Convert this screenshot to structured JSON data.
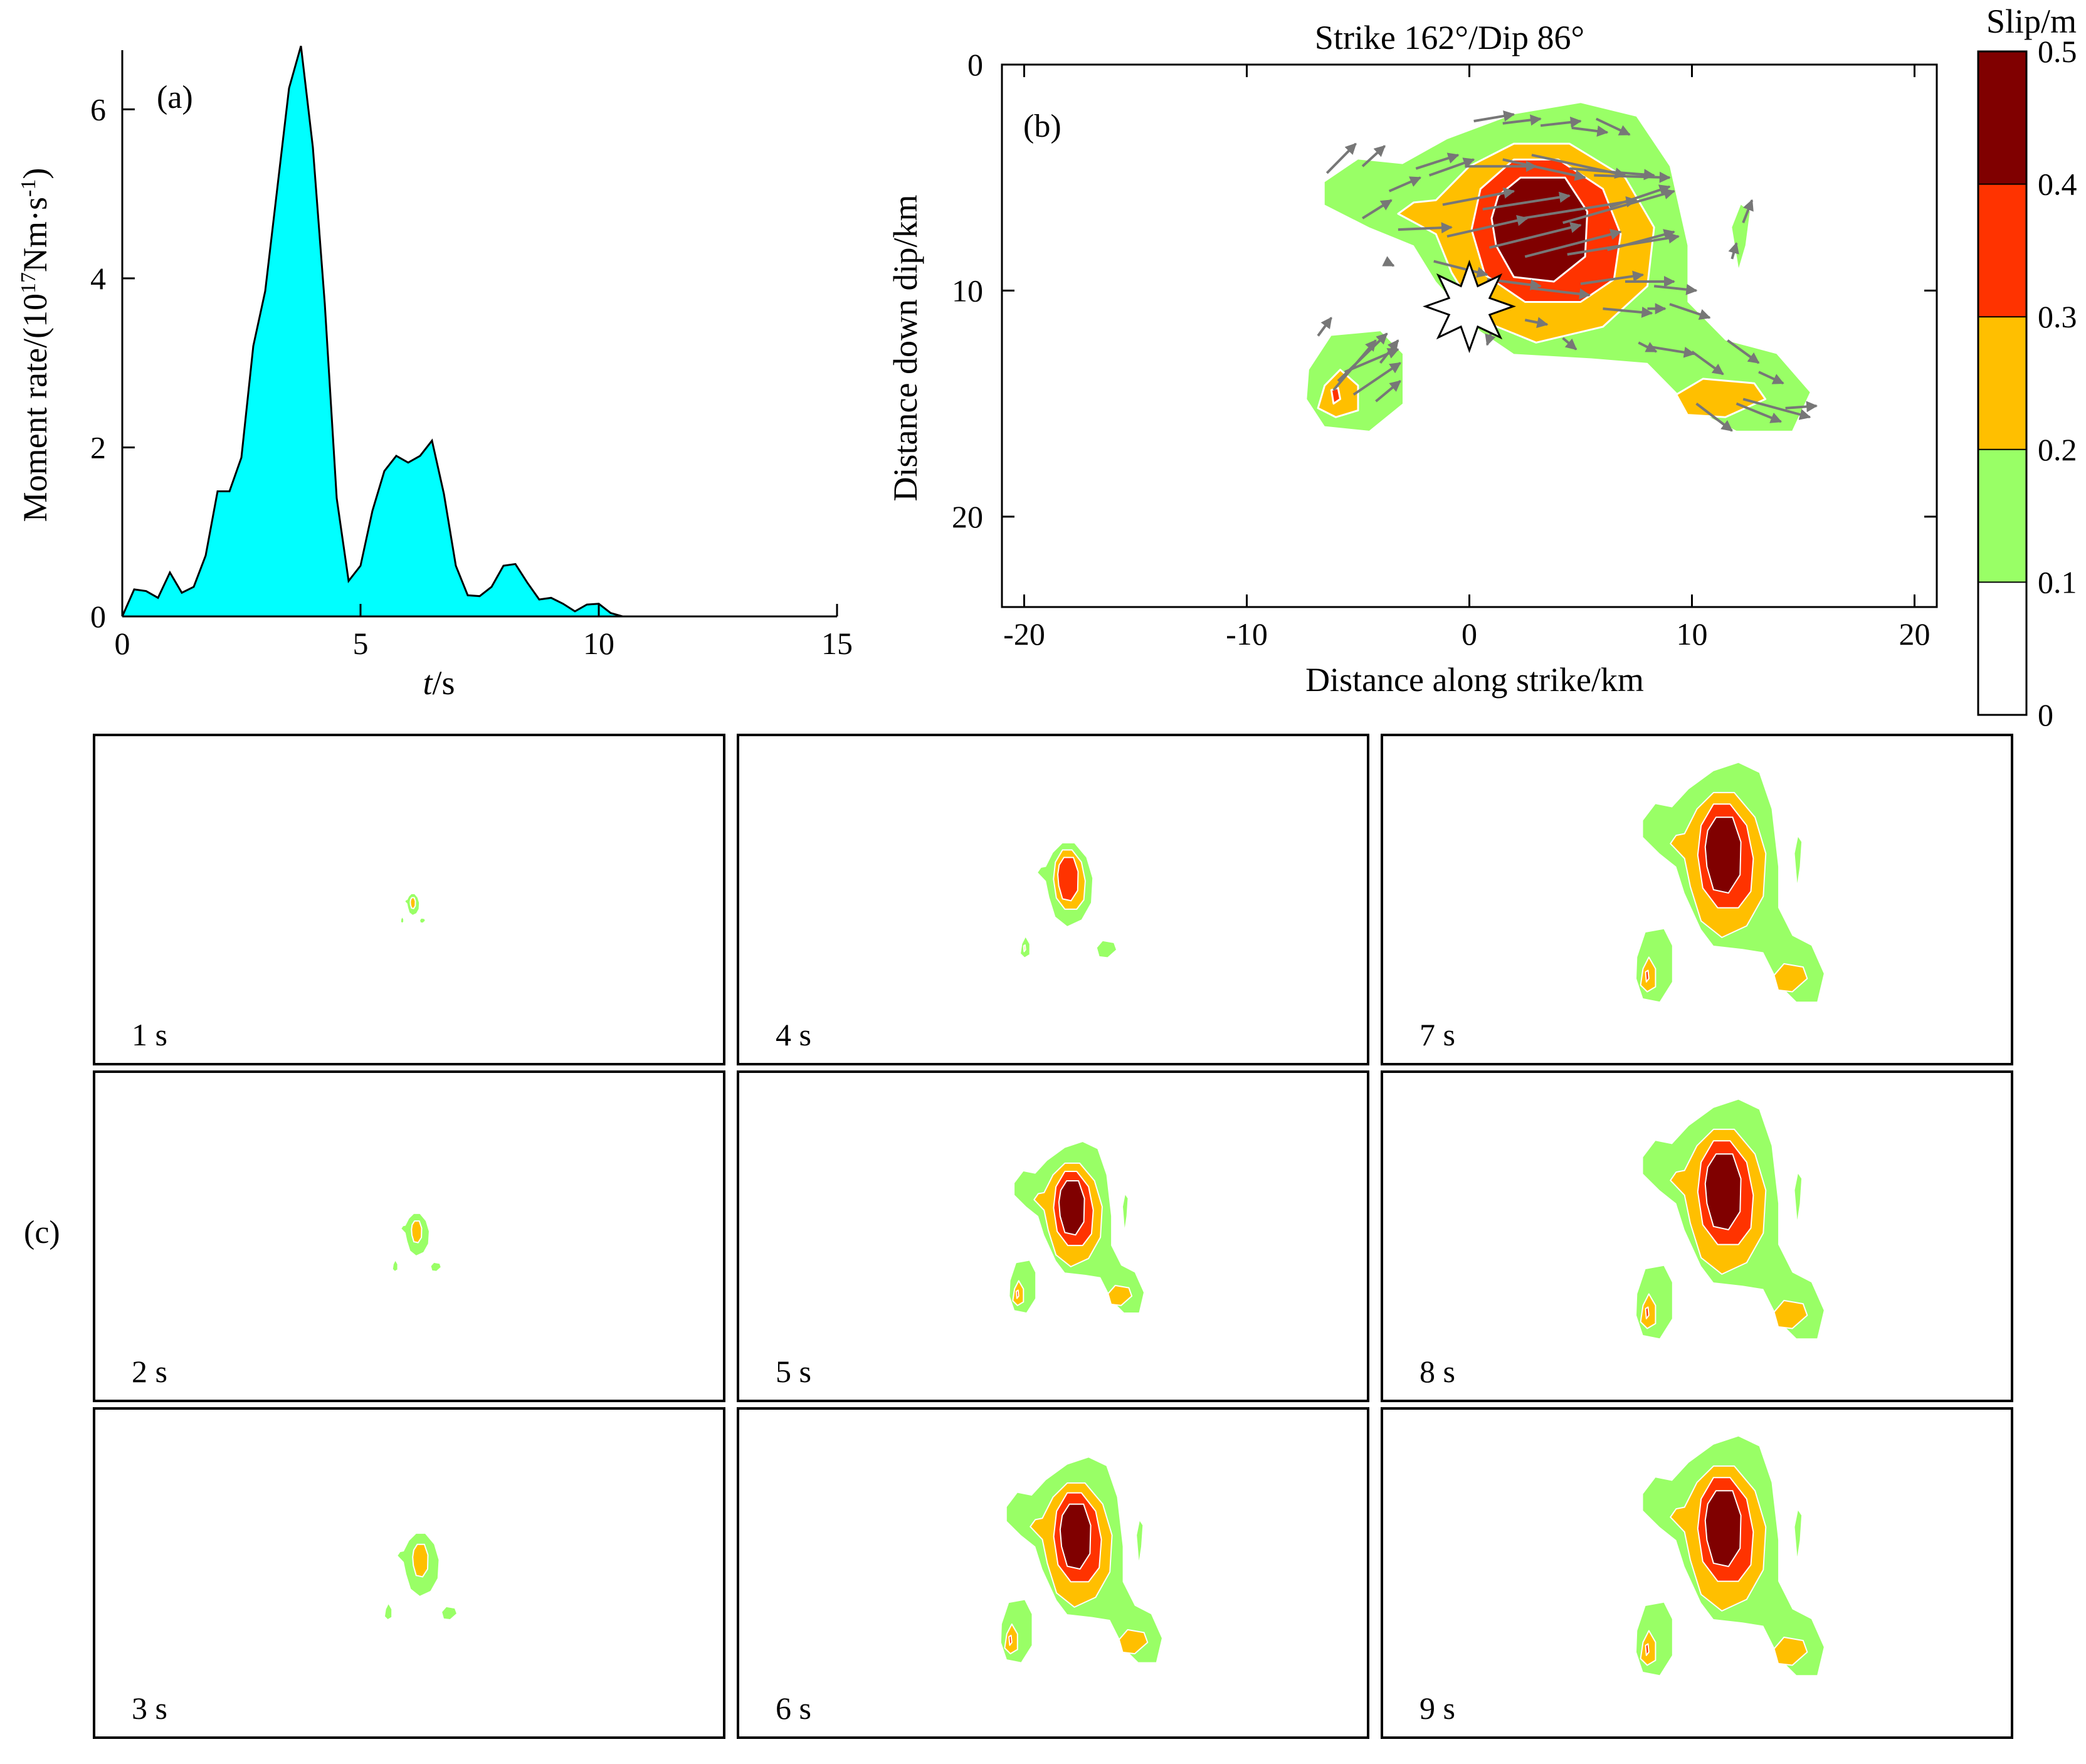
{
  "chart_data": [
    {
      "id": "a",
      "type": "area",
      "panel_label": "(a)",
      "xlabel_italic": "t",
      "xlabel_unit": "/s",
      "ylabel_main": "Moment rate/(10",
      "ylabel_exp1": "17",
      "ylabel_mid": "Nm·s",
      "ylabel_exp2": "-1",
      "ylabel_end": ")",
      "xlim": [
        0,
        15
      ],
      "ylim": [
        0,
        6.7
      ],
      "xticks": [
        0,
        5,
        10,
        15
      ],
      "yticks": [
        0,
        2,
        4,
        6
      ],
      "fill_color": "#00ffff",
      "x": [
        0,
        0.25,
        0.5,
        0.75,
        1.0,
        1.25,
        1.5,
        1.75,
        2.0,
        2.25,
        2.5,
        2.75,
        3.0,
        3.25,
        3.5,
        3.75,
        4.0,
        4.25,
        4.5,
        4.75,
        5.0,
        5.25,
        5.5,
        5.75,
        6.0,
        6.25,
        6.5,
        6.75,
        7.0,
        7.25,
        7.5,
        7.75,
        8.0,
        8.25,
        8.5,
        8.75,
        9.0,
        9.25,
        9.5,
        9.75,
        10.0,
        10.25,
        10.5,
        10.75,
        11.0
      ],
      "y": [
        0,
        0.32,
        0.3,
        0.22,
        0.52,
        0.28,
        0.35,
        0.72,
        1.48,
        1.48,
        1.88,
        3.2,
        3.85,
        5.05,
        6.25,
        6.75,
        5.55,
        3.7,
        1.4,
        0.42,
        0.6,
        1.25,
        1.72,
        1.9,
        1.82,
        1.9,
        2.08,
        1.45,
        0.6,
        0.25,
        0.24,
        0.35,
        0.6,
        0.62,
        0.4,
        0.2,
        0.22,
        0.15,
        0.06,
        0.14,
        0.15,
        0.04,
        0.0,
        0.0,
        0.0
      ]
    },
    {
      "id": "b",
      "type": "heatmap",
      "panel_label": "(b)",
      "title": "Strike 162°/Dip 86°",
      "xlabel": "Distance along strike/km",
      "ylabel": "Distance down dip/km",
      "xlim": [
        -21,
        21
      ],
      "ylim": [
        24,
        0
      ],
      "xticks": [
        -20,
        -10,
        0,
        10,
        20
      ],
      "yticks": [
        0,
        10,
        20
      ],
      "hypocenter": [
        0,
        10.7
      ],
      "contour_levels": [
        0.1,
        0.2,
        0.3,
        0.4
      ],
      "patches": [
        {
          "slip": 0.1,
          "points": [
            [
              -6.5,
              5.2
            ],
            [
              -5,
              4.2
            ],
            [
              -3,
              4.4
            ],
            [
              -1,
              3.3
            ],
            [
              2,
              2.2
            ],
            [
              5,
              1.7
            ],
            [
              7.5,
              2.3
            ],
            [
              9,
              4.5
            ],
            [
              9.8,
              8
            ],
            [
              9.8,
              10.5
            ],
            [
              11.5,
              12.2
            ],
            [
              13.8,
              12.8
            ],
            [
              15.3,
              14.5
            ],
            [
              14.5,
              16.2
            ],
            [
              12,
              16.2
            ],
            [
              10,
              15.2
            ],
            [
              8,
              13.2
            ],
            [
              5.5,
              13
            ],
            [
              2,
              12.8
            ],
            [
              0.5,
              11.8
            ],
            [
              -1.5,
              9.6
            ],
            [
              -2.5,
              8
            ],
            [
              -4.5,
              7.2
            ],
            [
              -6.5,
              6.2
            ]
          ]
        },
        {
          "slip": 0.1,
          "points": [
            [
              -7.2,
              13.5
            ],
            [
              -6.2,
              12
            ],
            [
              -4,
              11.8
            ],
            [
              -3,
              12.8
            ],
            [
              -3,
              15
            ],
            [
              -4.5,
              16.2
            ],
            [
              -6.5,
              16
            ],
            [
              -7.3,
              14.8
            ]
          ]
        },
        {
          "slip": 0.1,
          "points": [
            [
              12.2,
              6.2
            ],
            [
              12.6,
              6.5
            ],
            [
              12.4,
              8
            ],
            [
              12.1,
              9
            ],
            [
              11.8,
              7.2
            ]
          ]
        },
        {
          "slip": 0.2,
          "points": [
            [
              -1.5,
              6
            ],
            [
              0,
              4.5
            ],
            [
              2,
              3.5
            ],
            [
              4.5,
              3.5
            ],
            [
              7,
              5
            ],
            [
              8.3,
              7.2
            ],
            [
              8,
              9.8
            ],
            [
              6,
              11.6
            ],
            [
              3,
              12.3
            ],
            [
              0.5,
              11.3
            ],
            [
              -0.8,
              9.2
            ],
            [
              -1.5,
              7.5
            ],
            [
              -3.2,
              6.6
            ],
            [
              -2.5,
              6.1
            ]
          ]
        },
        {
          "slip": 0.2,
          "points": [
            [
              -6.5,
              14.2
            ],
            [
              -5.8,
              13.5
            ],
            [
              -5,
              14.2
            ],
            [
              -5,
              15.3
            ],
            [
              -6,
              15.6
            ],
            [
              -6.8,
              15.2
            ]
          ]
        },
        {
          "slip": 0.2,
          "points": [
            [
              9.3,
              14.6
            ],
            [
              10.5,
              13.9
            ],
            [
              12.8,
              14.1
            ],
            [
              13.3,
              14.8
            ],
            [
              11.5,
              15.6
            ],
            [
              9.8,
              15.5
            ]
          ]
        },
        {
          "slip": 0.3,
          "points": [
            [
              0.5,
              5.5
            ],
            [
              2,
              4.2
            ],
            [
              4,
              4.2
            ],
            [
              6,
              5.5
            ],
            [
              6.8,
              7.5
            ],
            [
              6.5,
              9.5
            ],
            [
              5,
              10.5
            ],
            [
              2.5,
              10.5
            ],
            [
              0.7,
              9.3
            ],
            [
              0.1,
              7.3
            ]
          ]
        },
        {
          "slip": 0.3,
          "points": [
            [
              -6.2,
              14.4
            ],
            [
              -5.9,
              14.3
            ],
            [
              -5.8,
              14.8
            ],
            [
              -6.1,
              15
            ]
          ]
        },
        {
          "slip": 0.4,
          "points": [
            [
              1.3,
              5.8
            ],
            [
              2.3,
              5
            ],
            [
              4.3,
              5
            ],
            [
              5.3,
              6.5
            ],
            [
              5.2,
              8.5
            ],
            [
              3.8,
              9.6
            ],
            [
              2,
              9.4
            ],
            [
              1.2,
              8
            ],
            [
              1.0,
              6.8
            ]
          ]
        }
      ],
      "slip_vectors": [
        [
          -6.4,
          4.8,
          -5.1,
          3.5
        ],
        [
          -4.8,
          4.5,
          -3.8,
          3.6
        ],
        [
          -3.6,
          5.6,
          -2.2,
          5.0
        ],
        [
          -2.4,
          4.6,
          -0.5,
          4.0
        ],
        [
          -1.8,
          4.9,
          0.2,
          4.2
        ],
        [
          0.2,
          2.5,
          2.0,
          2.2
        ],
        [
          1.5,
          2.6,
          3.2,
          2.4
        ],
        [
          3.2,
          2.7,
          5.0,
          2.5
        ],
        [
          4.6,
          2.8,
          6.2,
          3.0
        ],
        [
          5.7,
          2.4,
          7.2,
          3.1
        ],
        [
          -0.2,
          4.5,
          3.0,
          4.5
        ],
        [
          1.5,
          4.2,
          5.2,
          5.0
        ],
        [
          2.8,
          4.0,
          7.0,
          4.9
        ],
        [
          4.5,
          4.6,
          8.3,
          4.9
        ],
        [
          5.6,
          4.9,
          9.0,
          5.0
        ],
        [
          -1.2,
          6.2,
          2.0,
          5.6
        ],
        [
          0.6,
          6.4,
          4.5,
          5.8
        ],
        [
          2.4,
          6.8,
          7.5,
          6.0
        ],
        [
          4.2,
          7.0,
          9.2,
          5.6
        ],
        [
          6.3,
          6.3,
          9.0,
          5.4
        ],
        [
          -4.8,
          6.8,
          -3.5,
          6.0
        ],
        [
          -3.2,
          7.3,
          -0.8,
          7.2
        ],
        [
          -1.0,
          7.6,
          2.6,
          6.8
        ],
        [
          0.9,
          8.1,
          5.0,
          7.1
        ],
        [
          2.5,
          8.5,
          6.8,
          7.4
        ],
        [
          4.4,
          8.4,
          9.4,
          7.6
        ],
        [
          6.2,
          8.2,
          9.2,
          7.4
        ],
        [
          -3.8,
          8.7,
          -3.4,
          8.9
        ],
        [
          -1.6,
          8.7,
          0.8,
          9.3
        ],
        [
          0.8,
          9.5,
          3.2,
          9.8
        ],
        [
          2.8,
          9.9,
          5.4,
          10.2
        ],
        [
          5.0,
          9.7,
          7.8,
          9.3
        ],
        [
          7.0,
          9.6,
          9.2,
          9.6
        ],
        [
          -0.4,
          10.2,
          0.0,
          9.4
        ],
        [
          8.0,
          10.8,
          8.8,
          10.8
        ],
        [
          6.0,
          10.8,
          8.2,
          11.0
        ],
        [
          8.3,
          9.8,
          10.2,
          10.0
        ],
        [
          9.0,
          10.6,
          10.8,
          11.2
        ],
        [
          2.5,
          11.3,
          3.5,
          11.5
        ],
        [
          1.0,
          11.8,
          0.8,
          12.4
        ],
        [
          4.2,
          12.1,
          4.8,
          12.6
        ],
        [
          7.6,
          12.3,
          8.4,
          12.7
        ],
        [
          8.2,
          12.5,
          10.1,
          12.8
        ],
        [
          10.0,
          12.7,
          11.4,
          13.7
        ],
        [
          11.6,
          12.2,
          13.0,
          13.2
        ],
        [
          13.0,
          13.6,
          14.1,
          14.1
        ],
        [
          12.0,
          15.0,
          14.0,
          15.8
        ],
        [
          14.2,
          15.2,
          15.6,
          15.1
        ],
        [
          10.2,
          15.0,
          11.8,
          16.2
        ],
        [
          12.3,
          14.8,
          15.3,
          15.6
        ],
        [
          -6.1,
          14.4,
          -4.2,
          12.2
        ],
        [
          -5.9,
          14.0,
          -3.7,
          11.9
        ],
        [
          -5.6,
          13.6,
          -3.2,
          12.6
        ],
        [
          -5.2,
          14.6,
          -3.1,
          13.2
        ],
        [
          -4.2,
          14.9,
          -3.1,
          14.0
        ],
        [
          -6.8,
          12.0,
          -6.2,
          11.2
        ],
        [
          -4.0,
          13.2,
          -3.2,
          12.2
        ],
        [
          12.3,
          7.0,
          12.7,
          6.0
        ],
        [
          11.8,
          8.6,
          12.0,
          7.9
        ]
      ]
    },
    {
      "id": "colorbar",
      "type": "colorbar",
      "title": "Slip/m",
      "levels": [
        0,
        0.1,
        0.2,
        0.3,
        0.4,
        0.5
      ],
      "tick_labels": [
        "0",
        "0.1",
        "0.2",
        "0.3",
        "0.4",
        "0.5"
      ],
      "colors": [
        "#ffffff",
        "#99ff66",
        "#ffbf00",
        "#ff3300",
        "#800000"
      ]
    },
    {
      "id": "c",
      "type": "heatmap",
      "panel_label": "(c)",
      "snapshots": [
        {
          "label": "1 s",
          "t": 1,
          "order": 0
        },
        {
          "label": "2 s",
          "t": 2,
          "order": 1
        },
        {
          "label": "3 s",
          "t": 3,
          "order": 2
        },
        {
          "label": "4 s",
          "t": 4,
          "order": 3
        },
        {
          "label": "5 s",
          "t": 5,
          "order": 4
        },
        {
          "label": "6 s",
          "t": 6,
          "order": 5
        },
        {
          "label": "7 s",
          "t": 7,
          "order": 6
        },
        {
          "label": "8 s",
          "t": 8,
          "order": 7
        },
        {
          "label": "9 s",
          "t": 9,
          "order": 8
        }
      ]
    }
  ]
}
